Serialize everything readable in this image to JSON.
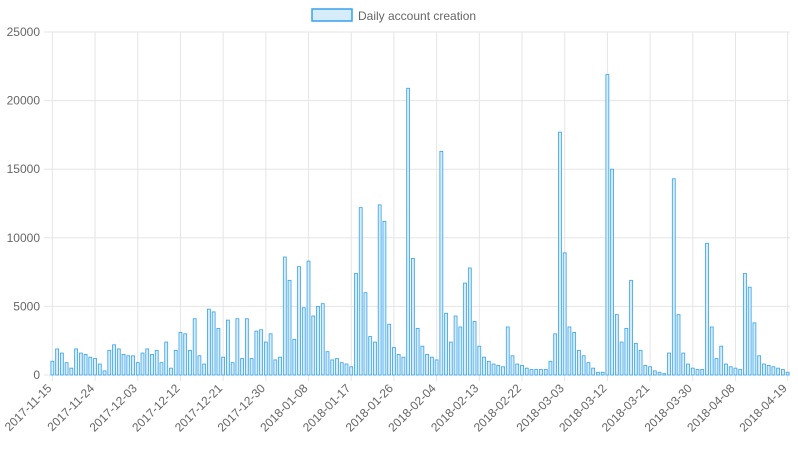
{
  "colors": {
    "bar_fill": "#d6ecf8",
    "bar_stroke": "#36a2eb",
    "grid": "#e5e5e5",
    "tick_text": "#666666"
  },
  "chart_data": {
    "type": "bar",
    "title": "",
    "xlabel": "",
    "ylabel": "",
    "legend": {
      "position": "top",
      "entries": [
        "Daily account creation"
      ]
    },
    "grid": true,
    "ylim": [
      0,
      25000
    ],
    "y_ticks": [
      "0",
      "5000",
      "10000",
      "15000",
      "20000",
      "25000"
    ],
    "x_tick_labels": [
      "2017-11-15",
      "2017-11-24",
      "2017-12-03",
      "2017-12-12",
      "2017-12-21",
      "2017-12-30",
      "2018-01-08",
      "2018-01-17",
      "2018-01-26",
      "2018-02-04",
      "2018-02-13",
      "2018-02-22",
      "2018-03-03",
      "2018-03-12",
      "2018-03-21",
      "2018-03-30",
      "2018-04-08",
      "2018-04-19"
    ],
    "start_date": "2017-11-15",
    "series": [
      {
        "name": "Daily account creation",
        "values": [
          1000,
          1900,
          1600,
          900,
          500,
          1900,
          1600,
          1500,
          1300,
          1200,
          800,
          300,
          1800,
          2200,
          1900,
          1500,
          1400,
          1400,
          900,
          1600,
          1900,
          1500,
          1800,
          900,
          2400,
          500,
          1800,
          3100,
          3000,
          1800,
          4100,
          1400,
          800,
          4800,
          4600,
          3400,
          1300,
          4000,
          900,
          4100,
          1200,
          4100,
          1200,
          3200,
          3300,
          2400,
          3000,
          1100,
          1300,
          8600,
          6900,
          2600,
          7900,
          4900,
          8300,
          4300,
          5000,
          5200,
          1700,
          1100,
          1200,
          900,
          800,
          600,
          7400,
          12200,
          6000,
          2800,
          2400,
          12400,
          11200,
          3700,
          2000,
          1500,
          1300,
          20900,
          8500,
          3400,
          2100,
          1500,
          1300,
          1100,
          16300,
          4500,
          2400,
          4300,
          3500,
          6700,
          7800,
          3900,
          2100,
          1300,
          1000,
          800,
          700,
          600,
          3500,
          1400,
          800,
          700,
          500,
          400,
          400,
          400,
          400,
          1000,
          3000,
          17700,
          8900,
          3500,
          3100,
          1800,
          1400,
          900,
          500,
          200,
          200,
          21900,
          15000,
          4400,
          2400,
          3400,
          6900,
          2300,
          1800,
          700,
          600,
          300,
          200,
          100,
          1600,
          14300,
          4400,
          1600,
          800,
          500,
          400,
          400,
          9600,
          3500,
          1200,
          2100,
          800,
          600,
          500,
          400,
          7400,
          6400,
          3800,
          1400,
          800,
          700,
          600,
          500,
          400,
          200
        ]
      }
    ]
  }
}
